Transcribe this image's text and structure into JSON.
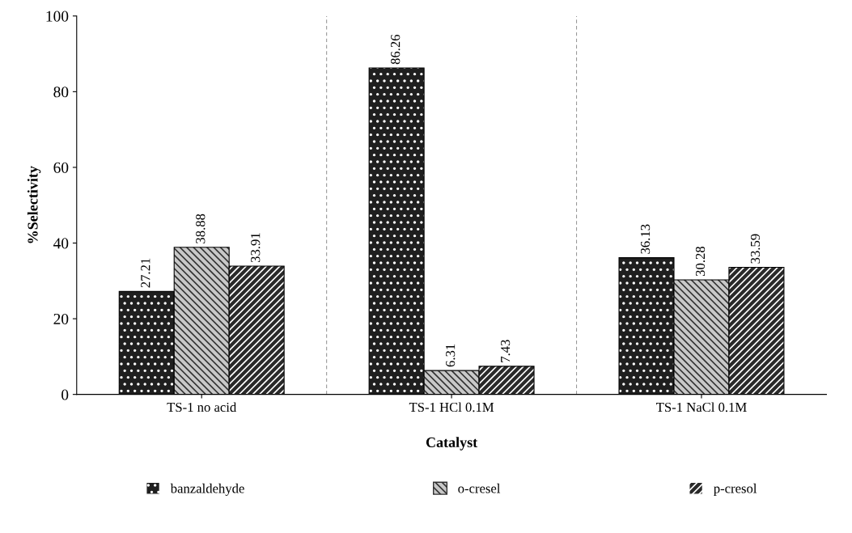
{
  "chart_data": {
    "type": "bar",
    "xlabel": "Catalyst",
    "ylabel": "%Selectivity",
    "categories": [
      "TS-1 no acid",
      "TS-1 HCl 0.1M",
      "TS-1 NaCl 0.1M"
    ],
    "series": [
      {
        "name": "banzaldehyde",
        "color": "#1f1f1f",
        "values": [
          27.21,
          86.26,
          36.13
        ]
      },
      {
        "name": "o-cresel",
        "color": "#c8c8c8",
        "values": [
          38.88,
          6.31,
          30.28
        ]
      },
      {
        "name": "p-cresol",
        "color": "#2a2a2a",
        "values": [
          33.91,
          7.43,
          33.59
        ]
      }
    ],
    "ylim": [
      0,
      100
    ],
    "yticks": [
      0,
      20,
      40,
      60,
      80,
      100
    ],
    "grid": false,
    "legend": "bottom",
    "data_labels": true
  }
}
